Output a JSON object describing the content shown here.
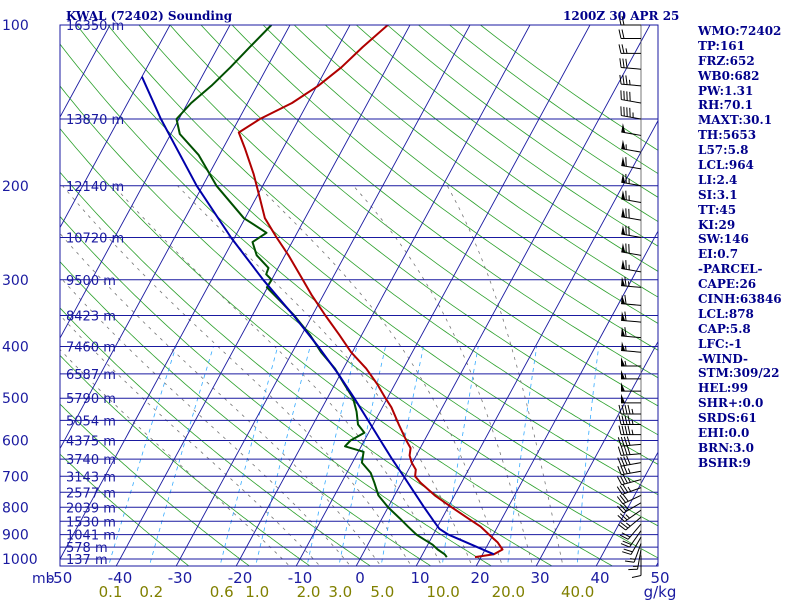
{
  "header": {
    "station": "KWAL (72402) Sounding",
    "time": "1200Z 30 APR 25"
  },
  "stats": [
    "WMO:72402",
    "TP:161",
    "FRZ:652",
    "WB0:682",
    "PW:1.31",
    "RH:70.1",
    "MAXT:30.1",
    "TH:5653",
    "L57:5.8",
    "LCL:964",
    "LI:2.4",
    "SI:3.1",
    "TT:45",
    "KI:29",
    "SW:146",
    "EI:0.7",
    "-PARCEL-",
    "CAPE:26",
    "CINH:63846",
    "LCL:878",
    "CAP:5.8",
    "LFC:-1",
    "-WIND-",
    "STM:309/22",
    "HEL:99",
    "SHR+:0.0",
    "SRDS:61",
    "EHI:0.0",
    "BRN:3.0",
    "BSHR:9"
  ],
  "colors": {
    "text": "#00008b",
    "isobar": "#1a1aa0",
    "isotherm": "#1a1aa0",
    "dry_adiabat": "#2ca02c",
    "moist_adiabat": "#777777",
    "mixing_ratio": "#33aaff",
    "mixing_ratio_label": "#808000",
    "temperature": "#b00000",
    "dewpoint": "#005000",
    "parcel": "#0000aa",
    "wind": "#000000"
  },
  "chart_data": {
    "type": "line",
    "title": "KWAL (72402) Sounding",
    "subtitle": "1200Z 30 APR 25",
    "y_scale": "log",
    "skew": true,
    "xlabel": "",
    "ylabel": "mb",
    "x_unit": "°C",
    "xlim": [
      -50,
      50
    ],
    "ylim": [
      1000,
      100
    ],
    "pressure_ticks": [
      100,
      200,
      300,
      400,
      500,
      600,
      700,
      800,
      900,
      1000
    ],
    "pressure_label_row": [
      "100",
      "200",
      "300",
      "400",
      "500",
      "600",
      "700",
      "800",
      "900",
      "1000"
    ],
    "y_unit_label": "mb",
    "temperature_ticks": [
      -50,
      -40,
      -30,
      -20,
      -10,
      0,
      10,
      20,
      30,
      40,
      50
    ],
    "temperature_tick_labels": [
      "-50",
      "-40",
      "-30",
      "-20",
      "-10",
      "0",
      "10",
      "20",
      "30",
      "40",
      "50"
    ],
    "mixing_ratio_ticks": [
      0.1,
      0.2,
      0.6,
      1.0,
      2.0,
      3.0,
      5.0,
      10.0,
      20.0,
      40.0
    ],
    "mixing_ratio_tick_labels": [
      "0.1",
      "0.2",
      "0.6",
      "1.0",
      "2.0",
      "3.0",
      "5.0",
      "10.0",
      "20.0",
      "40.0"
    ],
    "mixing_ratio_unit": "g/kg",
    "height_labels": [
      {
        "p": 100,
        "label": "16350 m"
      },
      {
        "p": 150,
        "label": "13870 m"
      },
      {
        "p": 200,
        "label": "12140 m"
      },
      {
        "p": 250,
        "label": "10720 m"
      },
      {
        "p": 300,
        "label": "9500 m"
      },
      {
        "p": 350,
        "label": "8423 m"
      },
      {
        "p": 400,
        "label": "7460 m"
      },
      {
        "p": 450,
        "label": "6587 m"
      },
      {
        "p": 500,
        "label": "5790 m"
      },
      {
        "p": 550,
        "label": "5054 m"
      },
      {
        "p": 600,
        "label": "4375 m"
      },
      {
        "p": 650,
        "label": "3740 m"
      },
      {
        "p": 700,
        "label": "3143 m"
      },
      {
        "p": 750,
        "label": "2577 m"
      },
      {
        "p": 800,
        "label": "2039 m"
      },
      {
        "p": 850,
        "label": "1530 m"
      },
      {
        "p": 900,
        "label": "1041 m"
      },
      {
        "p": 950,
        "label": "578 m"
      },
      {
        "p": 1000,
        "label": "137 m"
      }
    ],
    "series": [
      {
        "key": "temperature",
        "points": [
          {
            "p": 992,
            "t": 19.0
          },
          {
            "p": 980,
            "t": 21.9
          },
          {
            "p": 960,
            "t": 22.9
          },
          {
            "p": 930,
            "t": 21.4
          },
          {
            "p": 900,
            "t": 19.3
          },
          {
            "p": 870,
            "t": 17.2
          },
          {
            "p": 840,
            "t": 14.4
          },
          {
            "p": 800,
            "t": 10.6
          },
          {
            "p": 760,
            "t": 6.7
          },
          {
            "p": 720,
            "t": 3.2
          },
          {
            "p": 700,
            "t": 1.7
          },
          {
            "p": 680,
            "t": 1.2
          },
          {
            "p": 660,
            "t": -0.1
          },
          {
            "p": 640,
            "t": -1.1
          },
          {
            "p": 620,
            "t": -1.6
          },
          {
            "p": 600,
            "t": -3.0
          },
          {
            "p": 560,
            "t": -5.7
          },
          {
            "p": 520,
            "t": -8.5
          },
          {
            "p": 500,
            "t": -10.3
          },
          {
            "p": 470,
            "t": -13.0
          },
          {
            "p": 440,
            "t": -16.2
          },
          {
            "p": 410,
            "t": -20.2
          },
          {
            "p": 380,
            "t": -23.8
          },
          {
            "p": 350,
            "t": -27.8
          },
          {
            "p": 320,
            "t": -32.0
          },
          {
            "p": 300,
            "t": -34.8
          },
          {
            "p": 270,
            "t": -39.4
          },
          {
            "p": 250,
            "t": -43.0
          },
          {
            "p": 230,
            "t": -46.7
          },
          {
            "p": 210,
            "t": -49.5
          },
          {
            "p": 190,
            "t": -52.6
          },
          {
            "p": 170,
            "t": -56.4
          },
          {
            "p": 159,
            "t": -58.8
          },
          {
            "p": 150,
            "t": -56.5
          },
          {
            "p": 140,
            "t": -52.6
          },
          {
            "p": 130,
            "t": -49.8
          },
          {
            "p": 120,
            "t": -47.6
          },
          {
            "p": 110,
            "t": -45.9
          },
          {
            "p": 100,
            "t": -43.7
          }
        ]
      },
      {
        "key": "dewpoint",
        "points": [
          {
            "p": 992,
            "t": 14.3
          },
          {
            "p": 980,
            "t": 13.7
          },
          {
            "p": 960,
            "t": 12.1
          },
          {
            "p": 940,
            "t": 10.8
          },
          {
            "p": 920,
            "t": 9.0
          },
          {
            "p": 900,
            "t": 7.2
          },
          {
            "p": 870,
            "t": 5.1
          },
          {
            "p": 840,
            "t": 3.0
          },
          {
            "p": 800,
            "t": 0.0
          },
          {
            "p": 760,
            "t": -2.7
          },
          {
            "p": 720,
            "t": -4.5
          },
          {
            "p": 690,
            "t": -6.0
          },
          {
            "p": 660,
            "t": -8.4
          },
          {
            "p": 630,
            "t": -9.1
          },
          {
            "p": 615,
            "t": -12.7
          },
          {
            "p": 600,
            "t": -12.3
          },
          {
            "p": 580,
            "t": -10.7
          },
          {
            "p": 560,
            "t": -12.5
          },
          {
            "p": 530,
            "t": -13.9
          },
          {
            "p": 500,
            "t": -15.7
          },
          {
            "p": 470,
            "t": -18.5
          },
          {
            "p": 440,
            "t": -21.4
          },
          {
            "p": 410,
            "t": -25.2
          },
          {
            "p": 380,
            "t": -28.7
          },
          {
            "p": 350,
            "t": -33.0
          },
          {
            "p": 330,
            "t": -36.4
          },
          {
            "p": 310,
            "t": -40.1
          },
          {
            "p": 300,
            "t": -40.0
          },
          {
            "p": 293,
            "t": -41.4
          },
          {
            "p": 285,
            "t": -41.6
          },
          {
            "p": 270,
            "t": -44.7
          },
          {
            "p": 255,
            "t": -46.6
          },
          {
            "p": 245,
            "t": -45.1
          },
          {
            "p": 230,
            "t": -50.2
          },
          {
            "p": 200,
            "t": -57.7
          },
          {
            "p": 175,
            "t": -63.5
          },
          {
            "p": 160,
            "t": -68.5
          },
          {
            "p": 150,
            "t": -70.4
          },
          {
            "p": 140,
            "t": -69.4
          },
          {
            "p": 130,
            "t": -67.6
          },
          {
            "p": 120,
            "t": -66.1
          },
          {
            "p": 110,
            "t": -64.7
          },
          {
            "p": 100,
            "t": -63.1
          }
        ]
      },
      {
        "key": "parcel",
        "points": [
          {
            "p": 980,
            "t": 21.9
          },
          {
            "p": 900,
            "t": 12.5
          },
          {
            "p": 878,
            "t": 10.5
          },
          {
            "p": 850,
            "t": 8.9
          },
          {
            "p": 800,
            "t": 6.0
          },
          {
            "p": 750,
            "t": 3.0
          },
          {
            "p": 700,
            "t": -0.2
          },
          {
            "p": 650,
            "t": -3.7
          },
          {
            "p": 600,
            "t": -7.3
          },
          {
            "p": 550,
            "t": -11.2
          },
          {
            "p": 500,
            "t": -15.5
          },
          {
            "p": 450,
            "t": -20.4
          },
          {
            "p": 400,
            "t": -26.2
          },
          {
            "p": 350,
            "t": -33.1
          },
          {
            "p": 300,
            "t": -41.4
          },
          {
            "p": 250,
            "t": -50.6
          },
          {
            "p": 200,
            "t": -61.0
          },
          {
            "p": 150,
            "t": -73.0
          },
          {
            "p": 125,
            "t": -80.0
          }
        ]
      }
    ],
    "wind_barbs": [
      {
        "p": 985,
        "dir": 180,
        "spd": 10
      },
      {
        "p": 960,
        "dir": 190,
        "spd": 15
      },
      {
        "p": 935,
        "dir": 200,
        "spd": 15
      },
      {
        "p": 910,
        "dir": 210,
        "spd": 20
      },
      {
        "p": 885,
        "dir": 215,
        "spd": 20
      },
      {
        "p": 860,
        "dir": 220,
        "spd": 20
      },
      {
        "p": 835,
        "dir": 230,
        "spd": 25
      },
      {
        "p": 810,
        "dir": 235,
        "spd": 25
      },
      {
        "p": 785,
        "dir": 240,
        "spd": 30
      },
      {
        "p": 760,
        "dir": 245,
        "spd": 30
      },
      {
        "p": 735,
        "dir": 250,
        "spd": 35
      },
      {
        "p": 710,
        "dir": 255,
        "spd": 35
      },
      {
        "p": 685,
        "dir": 260,
        "spd": 35
      },
      {
        "p": 660,
        "dir": 260,
        "spd": 40
      },
      {
        "p": 635,
        "dir": 265,
        "spd": 40
      },
      {
        "p": 610,
        "dir": 265,
        "spd": 40
      },
      {
        "p": 585,
        "dir": 270,
        "spd": 45
      },
      {
        "p": 560,
        "dir": 270,
        "spd": 45
      },
      {
        "p": 535,
        "dir": 270,
        "spd": 45
      },
      {
        "p": 510,
        "dir": 270,
        "spd": 50
      },
      {
        "p": 485,
        "dir": 270,
        "spd": 50
      },
      {
        "p": 460,
        "dir": 270,
        "spd": 55
      },
      {
        "p": 435,
        "dir": 270,
        "spd": 55
      },
      {
        "p": 410,
        "dir": 275,
        "spd": 55
      },
      {
        "p": 385,
        "dir": 275,
        "spd": 60
      },
      {
        "p": 360,
        "dir": 275,
        "spd": 60
      },
      {
        "p": 335,
        "dir": 275,
        "spd": 60
      },
      {
        "p": 310,
        "dir": 275,
        "spd": 65
      },
      {
        "p": 290,
        "dir": 280,
        "spd": 65
      },
      {
        "p": 270,
        "dir": 280,
        "spd": 70
      },
      {
        "p": 250,
        "dir": 280,
        "spd": 70
      },
      {
        "p": 232,
        "dir": 280,
        "spd": 70
      },
      {
        "p": 215,
        "dir": 280,
        "spd": 65
      },
      {
        "p": 200,
        "dir": 280,
        "spd": 65
      },
      {
        "p": 186,
        "dir": 280,
        "spd": 60
      },
      {
        "p": 173,
        "dir": 280,
        "spd": 55
      },
      {
        "p": 161,
        "dir": 280,
        "spd": 50
      },
      {
        "p": 150,
        "dir": 280,
        "spd": 45
      },
      {
        "p": 140,
        "dir": 280,
        "spd": 40
      },
      {
        "p": 130,
        "dir": 275,
        "spd": 35
      },
      {
        "p": 121,
        "dir": 275,
        "spd": 30
      },
      {
        "p": 113,
        "dir": 270,
        "spd": 25
      },
      {
        "p": 106,
        "dir": 270,
        "spd": 20
      },
      {
        "p": 100,
        "dir": 270,
        "spd": 20
      }
    ]
  }
}
